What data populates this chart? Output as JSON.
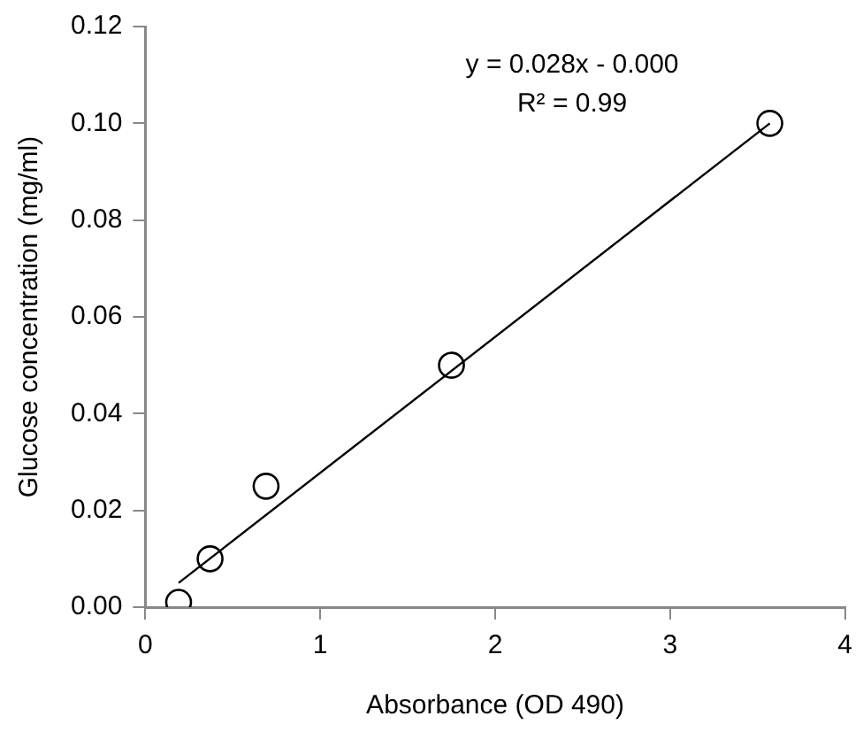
{
  "chart_data": {
    "type": "scatter",
    "xlabel": "Absorbance (OD 490)",
    "ylabel": "Glucose concentration (mg/ml)",
    "annotations": [
      "y = 0.028x - 0.000",
      "R² = 0.99"
    ],
    "series": [
      {
        "color": "#000000",
        "marker": "circle",
        "x": [
          0.19,
          0.37,
          0.69,
          1.75,
          3.57
        ],
        "values": [
          0.001,
          0.01,
          0.025,
          0.05,
          0.1
        ]
      },
      {
        "type": "line",
        "color": "#000000",
        "marker": "none",
        "x": [
          0.19,
          3.57
        ],
        "values": [
          0.005,
          0.1
        ]
      }
    ],
    "xlim": [
      0,
      4
    ],
    "xticks": [
      0,
      1,
      2,
      3,
      4
    ],
    "ylim": [
      0,
      0.12
    ],
    "yticks": [
      {
        "value": 0,
        "label": "0.00"
      },
      {
        "value": 0.02,
        "label": "0.02"
      },
      {
        "value": 0.04,
        "label": "0.04"
      },
      {
        "value": 0.06,
        "label": "0.06"
      },
      {
        "value": 0.08,
        "label": "0.08"
      },
      {
        "value": 0.1,
        "label": "0.10"
      },
      {
        "value": 0.12,
        "label": "0.12"
      }
    ],
    "grid": false,
    "legend": false
  }
}
